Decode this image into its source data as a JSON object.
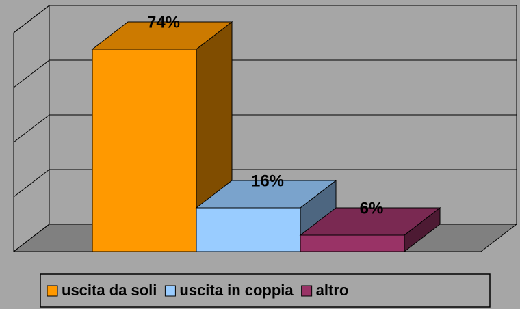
{
  "chart_data": {
    "type": "bar3d",
    "series": [
      {
        "name": "uscita da soli",
        "color": "#ff9900",
        "values": [
          74
        ],
        "value_labels": [
          "74%"
        ]
      },
      {
        "name": "uscita in coppia",
        "color": "#99ccff",
        "values": [
          16
        ],
        "value_labels": [
          "16%"
        ]
      },
      {
        "name": "altro",
        "color": "#993366",
        "values": [
          6
        ],
        "value_labels": [
          "6%"
        ]
      }
    ],
    "ylim": [
      0,
      80
    ],
    "yticks": [
      0,
      20,
      40,
      60,
      80
    ],
    "grid": true,
    "legend": "bottom"
  }
}
